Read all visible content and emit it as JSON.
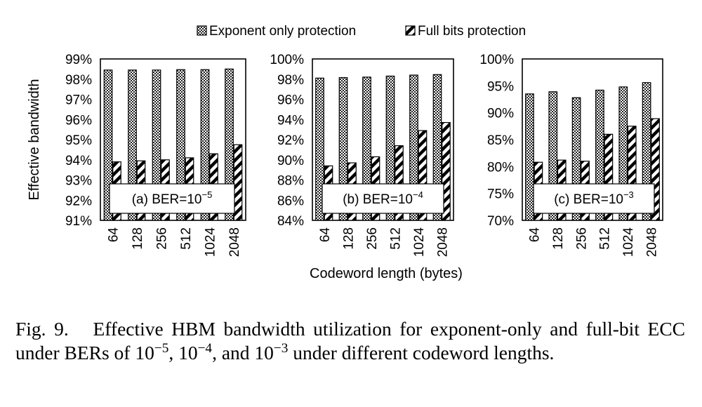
{
  "legend": {
    "exponent": "Exponent only protection",
    "full": "Full bits protection"
  },
  "ylabel_shared": "Effective bandwidth",
  "xlabel_shared": "Codeword length (bytes)",
  "caption": {
    "prefix": "Fig. 9.",
    "body_1": "Effective HBM bandwidth utilization for exponent-only and full-bit ECC under BERs of ",
    "p1_base": "10",
    "p1_exp": "−5",
    "sep1": ", ",
    "p2_base": "10",
    "p2_exp": "−4",
    "sep2": ", and ",
    "p3_base": "10",
    "p3_exp": "−3",
    "body_2": " under different codeword lengths."
  },
  "chart_data": [
    {
      "type": "bar",
      "title": "",
      "annotation": {
        "label": "(a)  BER=10",
        "exponent": "−5"
      },
      "categories": [
        "64",
        "128",
        "256",
        "512",
        "1024",
        "2048"
      ],
      "series": [
        {
          "name": "Exponent only protection",
          "values": [
            98.45,
            98.45,
            98.45,
            98.47,
            98.47,
            98.5
          ]
        },
        {
          "name": "Full bits protection",
          "values": [
            93.9,
            93.95,
            94.0,
            94.1,
            94.3,
            94.75
          ]
        }
      ],
      "yticks": [
        "91%",
        "92%",
        "93%",
        "94%",
        "95%",
        "96%",
        "97%",
        "98%",
        "99%"
      ],
      "ylim": [
        91,
        99
      ],
      "xlabel": "",
      "ylabel": "Effective bandwidth"
    },
    {
      "type": "bar",
      "title": "",
      "annotation": {
        "label": "(b) BER=10",
        "exponent": "−4"
      },
      "categories": [
        "64",
        "128",
        "256",
        "512",
        "1024",
        "2048"
      ],
      "series": [
        {
          "name": "Exponent only protection",
          "values": [
            98.1,
            98.15,
            98.2,
            98.3,
            98.4,
            98.45
          ]
        },
        {
          "name": "Full bits protection",
          "values": [
            89.4,
            89.7,
            90.3,
            91.4,
            92.9,
            93.7
          ]
        }
      ],
      "yticks": [
        "84%",
        "86%",
        "88%",
        "90%",
        "92%",
        "94%",
        "96%",
        "98%",
        "100%"
      ],
      "ylim": [
        84,
        100
      ],
      "xlabel": "Codeword length (bytes)",
      "ylabel": ""
    },
    {
      "type": "bar",
      "title": "",
      "annotation": {
        "label": "(c) BER=10",
        "exponent": "−3"
      },
      "categories": [
        "64",
        "128",
        "256",
        "512",
        "1024",
        "2048"
      ],
      "series": [
        {
          "name": "Exponent only protection",
          "values": [
            93.5,
            93.9,
            92.8,
            94.2,
            94.8,
            95.6
          ]
        },
        {
          "name": "Full bits protection",
          "values": [
            80.8,
            81.2,
            81.0,
            86.0,
            87.5,
            88.9
          ]
        }
      ],
      "yticks": [
        "70%",
        "75%",
        "80%",
        "85%",
        "90%",
        "95%",
        "100%"
      ],
      "ylim": [
        70,
        100
      ],
      "xlabel": "",
      "ylabel": ""
    }
  ]
}
